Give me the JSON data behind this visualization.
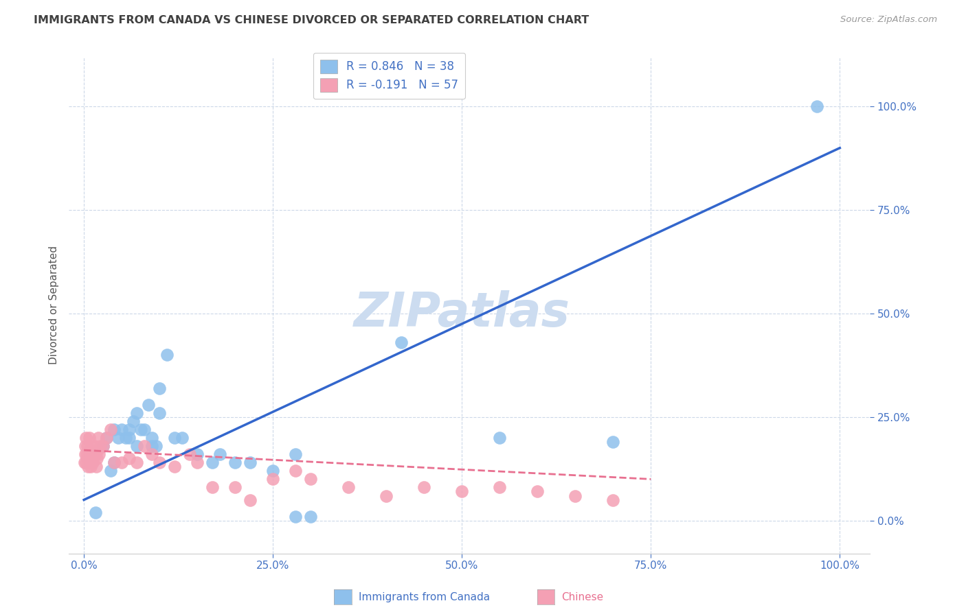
{
  "title": "IMMIGRANTS FROM CANADA VS CHINESE DIVORCED OR SEPARATED CORRELATION CHART",
  "source": "Source: ZipAtlas.com",
  "xlabel_tick_vals": [
    0,
    25,
    50,
    75,
    100
  ],
  "ylabel_tick_vals": [
    0,
    25,
    50,
    75,
    100
  ],
  "ylabel": "Divorced or Separated",
  "legend_label1": "Immigrants from Canada",
  "legend_label2": "Chinese",
  "r1": 0.846,
  "n1": 38,
  "r2": -0.191,
  "n2": 57,
  "color_blue": "#8ec0ec",
  "color_pink": "#f4a0b4",
  "color_trendline_blue": "#3366cc",
  "color_trendline_pink": "#e87090",
  "background": "#ffffff",
  "grid_color": "#ccd8e8",
  "title_color": "#404040",
  "axis_tick_color": "#4472c4",
  "axis_tick_color_right": "#4472c4",
  "watermark_color": "#ccdcf0",
  "blue_scatter_x": [
    1.5,
    2.5,
    3.0,
    4.0,
    4.5,
    5.0,
    5.5,
    6.0,
    6.5,
    7.0,
    7.5,
    8.0,
    8.5,
    9.0,
    9.5,
    10.0,
    11.0,
    12.0,
    13.0,
    15.0,
    17.0,
    18.0,
    20.0,
    22.0,
    25.0,
    28.0,
    30.0,
    42.0,
    55.0,
    70.0,
    97.0,
    3.5,
    4.0,
    6.0,
    7.0,
    9.0,
    10.0,
    28.0
  ],
  "blue_scatter_y": [
    2.0,
    18.0,
    20.0,
    22.0,
    20.0,
    22.0,
    20.0,
    22.0,
    24.0,
    26.0,
    22.0,
    22.0,
    28.0,
    20.0,
    18.0,
    32.0,
    40.0,
    20.0,
    20.0,
    16.0,
    14.0,
    16.0,
    14.0,
    14.0,
    12.0,
    1.0,
    1.0,
    43.0,
    20.0,
    19.0,
    100.0,
    12.0,
    14.0,
    20.0,
    18.0,
    18.0,
    26.0,
    16.0
  ],
  "pink_scatter_x": [
    0.1,
    0.15,
    0.2,
    0.25,
    0.3,
    0.35,
    0.4,
    0.45,
    0.5,
    0.55,
    0.6,
    0.65,
    0.7,
    0.75,
    0.8,
    0.85,
    0.9,
    0.95,
    1.0,
    1.1,
    1.2,
    1.3,
    1.4,
    1.5,
    1.6,
    1.7,
    1.8,
    1.9,
    2.0,
    2.2,
    2.5,
    3.0,
    3.5,
    4.0,
    5.0,
    6.0,
    7.0,
    8.0,
    9.0,
    10.0,
    12.0,
    14.0,
    15.0,
    17.0,
    20.0,
    22.0,
    25.0,
    28.0,
    30.0,
    35.0,
    40.0,
    45.0,
    50.0,
    55.0,
    60.0,
    65.0,
    70.0
  ],
  "pink_scatter_y": [
    14.0,
    16.0,
    18.0,
    20.0,
    14.0,
    16.0,
    15.0,
    18.0,
    13.0,
    15.0,
    16.0,
    14.0,
    14.0,
    20.0,
    16.0,
    14.0,
    13.0,
    15.0,
    18.0,
    16.0,
    14.0,
    16.0,
    18.0,
    16.0,
    13.0,
    15.0,
    17.0,
    20.0,
    16.0,
    18.0,
    18.0,
    20.0,
    22.0,
    14.0,
    14.0,
    15.0,
    14.0,
    18.0,
    16.0,
    14.0,
    13.0,
    16.0,
    14.0,
    8.0,
    8.0,
    5.0,
    10.0,
    12.0,
    10.0,
    8.0,
    6.0,
    8.0,
    7.0,
    8.0,
    7.0,
    6.0,
    5.0
  ],
  "blue_trendline_x": [
    0,
    100
  ],
  "blue_trendline_y": [
    5,
    90
  ],
  "pink_trendline_x": [
    0,
    75
  ],
  "pink_trendline_y": [
    17,
    10
  ]
}
